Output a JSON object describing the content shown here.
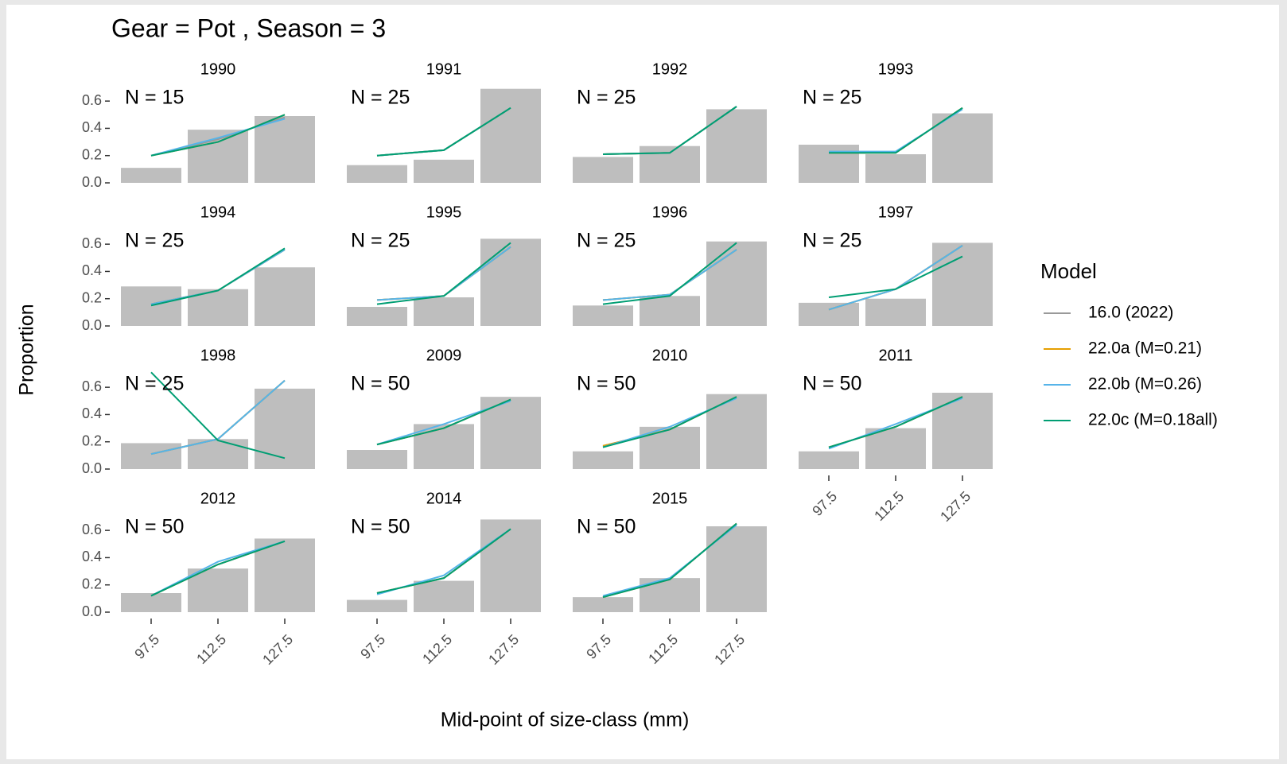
{
  "figure": {
    "title": "Gear = Pot , Season = 3",
    "x_label": "Mid-point of size-class (mm)",
    "y_label": "Proportion",
    "legend_title": "Model",
    "models": [
      {
        "name": "16.0 (2022)",
        "color": "#999999"
      },
      {
        "name": "22.0a (M=0.21)",
        "color": "#E69F00"
      },
      {
        "name": "22.0b (M=0.26)",
        "color": "#56B4E9"
      },
      {
        "name": "22.0c (M=0.18all)",
        "color": "#009E73"
      }
    ]
  },
  "chart_data": [
    {
      "type": "bar",
      "title": "1990",
      "annotation": "N = 15",
      "values": [
        0.11,
        0.39,
        0.49
      ],
      "color": "#bebebe",
      "ylim": [
        0,
        0.7
      ],
      "yticks": [
        {
          "value": 0,
          "label": "0.0"
        },
        0.2,
        0.4,
        0.6
      ],
      "series": [
        {
          "values": [
            0.2,
            0.32,
            0.48
          ]
        },
        {
          "values": [
            0.2,
            0.3,
            0.5
          ]
        },
        {
          "values": [
            0.2,
            0.33,
            0.47
          ]
        },
        {
          "values": [
            0.2,
            0.3,
            0.5
          ]
        }
      ]
    },
    {
      "type": "bar",
      "title": "1991",
      "annotation": "N = 25",
      "values": [
        0.13,
        0.17,
        0.69
      ],
      "color": "#bebebe",
      "ylim": [
        0,
        0.7
      ],
      "series": [
        {
          "values": [
            0.2,
            0.24,
            0.55
          ]
        },
        {
          "values": [
            0.2,
            0.24,
            0.55
          ]
        },
        {
          "values": [
            0.2,
            0.24,
            0.55
          ]
        },
        {
          "values": [
            0.2,
            0.24,
            0.55
          ]
        }
      ]
    },
    {
      "type": "bar",
      "title": "1992",
      "annotation": "N = 25",
      "values": [
        0.19,
        0.27,
        0.54
      ],
      "color": "#bebebe",
      "ylim": [
        0,
        0.7
      ],
      "series": [
        {
          "values": [
            0.21,
            0.22,
            0.56
          ]
        },
        {
          "values": [
            0.21,
            0.22,
            0.56
          ]
        },
        {
          "values": [
            0.21,
            0.22,
            0.56
          ]
        },
        {
          "values": [
            0.21,
            0.22,
            0.56
          ]
        }
      ]
    },
    {
      "type": "bar",
      "title": "1993",
      "annotation": "N = 25",
      "values": [
        0.28,
        0.21,
        0.51
      ],
      "color": "#bebebe",
      "ylim": [
        0,
        0.7
      ],
      "series": [
        {
          "values": [
            0.22,
            0.22,
            0.55
          ]
        },
        {
          "values": [
            0.22,
            0.22,
            0.55
          ]
        },
        {
          "values": [
            0.23,
            0.23,
            0.54
          ]
        },
        {
          "values": [
            0.22,
            0.22,
            0.55
          ]
        }
      ]
    },
    {
      "type": "bar",
      "title": "1994",
      "annotation": "N = 25",
      "values": [
        0.29,
        0.27,
        0.43
      ],
      "color": "#bebebe",
      "ylim": [
        0,
        0.7
      ],
      "yticks": [
        {
          "value": 0,
          "label": "0.0"
        },
        0.2,
        0.4,
        0.6
      ],
      "series": [
        {
          "values": [
            0.16,
            0.26,
            0.56
          ]
        },
        {
          "values": [
            0.16,
            0.26,
            0.56
          ]
        },
        {
          "values": [
            0.16,
            0.26,
            0.56
          ]
        },
        {
          "values": [
            0.15,
            0.26,
            0.57
          ]
        }
      ]
    },
    {
      "type": "bar",
      "title": "1995",
      "annotation": "N = 25",
      "values": [
        0.14,
        0.21,
        0.64
      ],
      "color": "#bebebe",
      "ylim": [
        0,
        0.7
      ],
      "series": [
        {
          "values": [
            0.19,
            0.22,
            0.58
          ]
        },
        {
          "values": [
            0.19,
            0.22,
            0.58
          ]
        },
        {
          "values": [
            0.19,
            0.22,
            0.58
          ]
        },
        {
          "values": [
            0.16,
            0.22,
            0.61
          ]
        }
      ]
    },
    {
      "type": "bar",
      "title": "1996",
      "annotation": "N = 25",
      "values": [
        0.15,
        0.22,
        0.62
      ],
      "color": "#bebebe",
      "ylim": [
        0,
        0.7
      ],
      "series": [
        {
          "values": [
            0.19,
            0.23,
            0.56
          ]
        },
        {
          "values": [
            0.19,
            0.23,
            0.56
          ]
        },
        {
          "values": [
            0.19,
            0.23,
            0.56
          ]
        },
        {
          "values": [
            0.16,
            0.22,
            0.61
          ]
        }
      ]
    },
    {
      "type": "bar",
      "title": "1997",
      "annotation": "N = 25",
      "values": [
        0.17,
        0.2,
        0.61
      ],
      "color": "#bebebe",
      "ylim": [
        0,
        0.7
      ],
      "series": [
        {
          "values": [
            0.12,
            0.27,
            0.59
          ]
        },
        {
          "values": [
            0.12,
            0.27,
            0.59
          ]
        },
        {
          "values": [
            0.12,
            0.27,
            0.59
          ]
        },
        {
          "values": [
            0.21,
            0.27,
            0.51
          ]
        }
      ]
    },
    {
      "type": "bar",
      "title": "1998",
      "annotation": "N = 25",
      "values": [
        0.19,
        0.22,
        0.59
      ],
      "color": "#bebebe",
      "ylim": [
        0,
        0.7
      ],
      "yticks": [
        {
          "value": 0,
          "label": "0.0"
        },
        0.2,
        0.4,
        0.6
      ],
      "series": [
        {
          "values": [
            0.11,
            0.22,
            0.65
          ]
        },
        {
          "values": [
            0.11,
            0.22,
            0.65
          ]
        },
        {
          "values": [
            0.11,
            0.22,
            0.65
          ]
        },
        {
          "values": [
            0.71,
            0.21,
            0.08
          ]
        }
      ]
    },
    {
      "type": "bar",
      "title": "2009",
      "annotation": "N = 50",
      "values": [
        0.14,
        0.33,
        0.53
      ],
      "color": "#bebebe",
      "ylim": [
        0,
        0.7
      ],
      "series": [
        {
          "values": [
            0.18,
            0.3,
            0.51
          ]
        },
        {
          "values": [
            0.18,
            0.3,
            0.51
          ]
        },
        {
          "values": [
            0.18,
            0.33,
            0.5
          ]
        },
        {
          "values": [
            0.18,
            0.3,
            0.51
          ]
        }
      ]
    },
    {
      "type": "bar",
      "title": "2010",
      "annotation": "N = 50",
      "values": [
        0.13,
        0.31,
        0.55
      ],
      "color": "#bebebe",
      "ylim": [
        0,
        0.7
      ],
      "series": [
        {
          "values": [
            0.17,
            0.29,
            0.53
          ]
        },
        {
          "values": [
            0.17,
            0.29,
            0.53
          ]
        },
        {
          "values": [
            0.16,
            0.31,
            0.52
          ]
        },
        {
          "values": [
            0.16,
            0.29,
            0.53
          ]
        }
      ]
    },
    {
      "type": "bar",
      "title": "2011",
      "annotation": "N = 50",
      "categories": [
        "97.5",
        "112.5",
        "127.5"
      ],
      "values": [
        0.13,
        0.3,
        0.56
      ],
      "color": "#bebebe",
      "ylim": [
        0,
        0.7
      ],
      "series": [
        {
          "values": [
            0.16,
            0.31,
            0.53
          ]
        },
        {
          "values": [
            0.16,
            0.31,
            0.53
          ]
        },
        {
          "values": [
            0.15,
            0.33,
            0.52
          ]
        },
        {
          "values": [
            0.16,
            0.31,
            0.53
          ]
        }
      ]
    },
    {
      "type": "bar",
      "title": "2012",
      "annotation": "N = 50",
      "categories": [
        "97.5",
        "112.5",
        "127.5"
      ],
      "values": [
        0.14,
        0.32,
        0.54
      ],
      "color": "#bebebe",
      "ylim": [
        0,
        0.7
      ],
      "yticks": [
        {
          "value": 0,
          "label": "0.0"
        },
        0.2,
        0.4,
        0.6
      ],
      "series": [
        {
          "values": [
            0.12,
            0.35,
            0.52
          ]
        },
        {
          "values": [
            0.12,
            0.35,
            0.52
          ]
        },
        {
          "values": [
            0.12,
            0.37,
            0.52
          ]
        },
        {
          "values": [
            0.12,
            0.35,
            0.52
          ]
        }
      ]
    },
    {
      "type": "bar",
      "title": "2014",
      "annotation": "N = 50",
      "categories": [
        "97.5",
        "112.5",
        "127.5"
      ],
      "values": [
        0.09,
        0.23,
        0.68
      ],
      "color": "#bebebe",
      "ylim": [
        0,
        0.7
      ],
      "series": [
        {
          "values": [
            0.14,
            0.25,
            0.61
          ]
        },
        {
          "values": [
            0.14,
            0.25,
            0.61
          ]
        },
        {
          "values": [
            0.13,
            0.27,
            0.61
          ]
        },
        {
          "values": [
            0.14,
            0.25,
            0.61
          ]
        }
      ]
    },
    {
      "type": "bar",
      "title": "2015",
      "annotation": "N = 50",
      "categories": [
        "97.5",
        "112.5",
        "127.5"
      ],
      "values": [
        0.11,
        0.25,
        0.63
      ],
      "color": "#bebebe",
      "ylim": [
        0,
        0.7
      ],
      "series": [
        {
          "values": [
            0.11,
            0.24,
            0.65
          ]
        },
        {
          "values": [
            0.11,
            0.24,
            0.65
          ]
        },
        {
          "values": [
            0.12,
            0.25,
            0.64
          ]
        },
        {
          "values": [
            0.11,
            0.24,
            0.65
          ]
        }
      ]
    }
  ]
}
